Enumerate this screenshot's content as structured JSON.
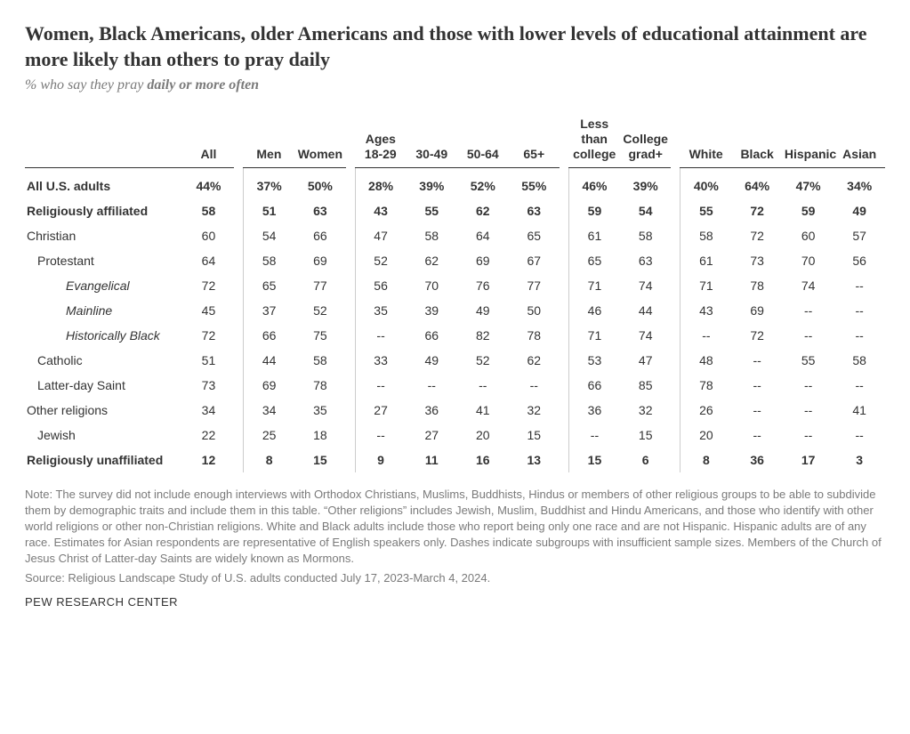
{
  "title": "Women, Black Americans, older Americans and those with lower levels of educational attainment are more likely than others to pray daily",
  "subtitle_prefix": "% who say they pray ",
  "subtitle_bold": "daily or more often",
  "columns": {
    "all": "All",
    "men": "Men",
    "women": "Women",
    "ages1829": "Ages 18-29",
    "a3049": "30-49",
    "a5064": "50-64",
    "a65": "65+",
    "less": "Less than college",
    "grad": "College grad+",
    "white": "White",
    "black": "Black",
    "hispanic": "Hispanic",
    "asian": "Asian"
  },
  "rows": [
    {
      "label": "All U.S. adults",
      "bold": true,
      "indent": 0,
      "vals": [
        "44%",
        "37%",
        "50%",
        "28%",
        "39%",
        "52%",
        "55%",
        "46%",
        "39%",
        "40%",
        "64%",
        "47%",
        "34%"
      ]
    },
    {
      "label": "Religiously affiliated",
      "bold": true,
      "indent": 0,
      "vals": [
        "58",
        "51",
        "63",
        "43",
        "55",
        "62",
        "63",
        "59",
        "54",
        "55",
        "72",
        "59",
        "49"
      ]
    },
    {
      "label": "Christian",
      "bold": false,
      "indent": 0,
      "vals": [
        "60",
        "54",
        "66",
        "47",
        "58",
        "64",
        "65",
        "61",
        "58",
        "58",
        "72",
        "60",
        "57"
      ]
    },
    {
      "label": "Protestant",
      "bold": false,
      "indent": 1,
      "vals": [
        "64",
        "58",
        "69",
        "52",
        "62",
        "69",
        "67",
        "65",
        "63",
        "61",
        "73",
        "70",
        "56"
      ]
    },
    {
      "label": "Evangelical",
      "bold": false,
      "indent": 2,
      "italic": true,
      "vals": [
        "72",
        "65",
        "77",
        "56",
        "70",
        "76",
        "77",
        "71",
        "74",
        "71",
        "78",
        "74",
        "--"
      ]
    },
    {
      "label": "Mainline",
      "bold": false,
      "indent": 2,
      "italic": true,
      "vals": [
        "45",
        "37",
        "52",
        "35",
        "39",
        "49",
        "50",
        "46",
        "44",
        "43",
        "69",
        "--",
        "--"
      ]
    },
    {
      "label": "Historically Black",
      "bold": false,
      "indent": 2,
      "italic": true,
      "vals": [
        "72",
        "66",
        "75",
        "--",
        "66",
        "82",
        "78",
        "71",
        "74",
        "--",
        "72",
        "--",
        "--"
      ]
    },
    {
      "label": "Catholic",
      "bold": false,
      "indent": 1,
      "vals": [
        "51",
        "44",
        "58",
        "33",
        "49",
        "52",
        "62",
        "53",
        "47",
        "48",
        "--",
        "55",
        "58"
      ]
    },
    {
      "label": "Latter-day Saint",
      "bold": false,
      "indent": 1,
      "vals": [
        "73",
        "69",
        "78",
        "--",
        "--",
        "--",
        "--",
        "66",
        "85",
        "78",
        "--",
        "--",
        "--"
      ]
    },
    {
      "label": "Other religions",
      "bold": false,
      "indent": 0,
      "vals": [
        "34",
        "34",
        "35",
        "27",
        "36",
        "41",
        "32",
        "36",
        "32",
        "26",
        "--",
        "--",
        "41"
      ]
    },
    {
      "label": "Jewish",
      "bold": false,
      "indent": 1,
      "vals": [
        "22",
        "25",
        "18",
        "--",
        "27",
        "20",
        "15",
        "--",
        "15",
        "20",
        "--",
        "--",
        "--"
      ]
    },
    {
      "label": "Religiously unaffiliated",
      "bold": true,
      "indent": 0,
      "vals": [
        "12",
        "8",
        "15",
        "9",
        "11",
        "16",
        "13",
        "15",
        "6",
        "8",
        "36",
        "17",
        "3"
      ]
    }
  ],
  "note": "Note: The survey did not include enough interviews with Orthodox Christians, Muslims, Buddhists, Hindus or members of other religious groups to be able to subdivide them by demographic traits and include them in this table. “Other religions” includes Jewish, Muslim, Buddhist and Hindu Americans, and those who identify with other world religions or other non-Christian religions. White and Black adults include those who report being only one race and are not Hispanic. Hispanic adults are of any race. Estimates for Asian respondents are representative of English speakers only. Dashes indicate subgroups with insufficient sample sizes. Members of the Church of Jesus Christ of Latter-day Saints are widely known as Mormons.",
  "source": "Source: Religious Landscape Study of U.S. adults conducted July 17, 2023-March 4, 2024.",
  "brand": "PEW RESEARCH CENTER"
}
